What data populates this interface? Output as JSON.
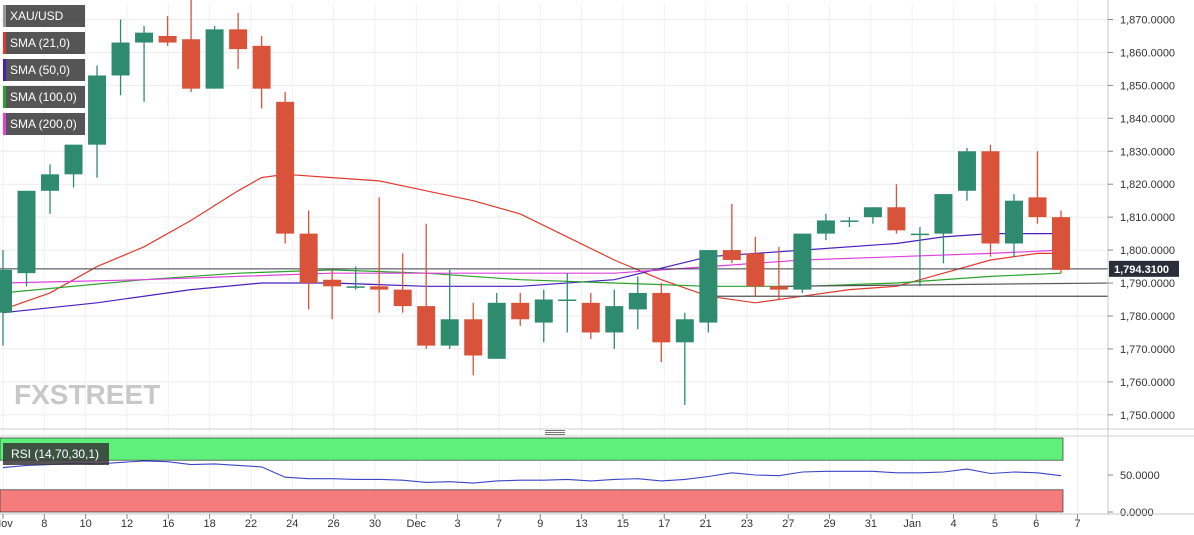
{
  "legend": {
    "symbol": "XAU/USD",
    "items": [
      {
        "label": "SMA (21,0)",
        "color": "#e03a2f"
      },
      {
        "label": "SMA (50,0)",
        "color": "#4b1fbf"
      },
      {
        "label": "SMA (100,0)",
        "color": "#2aa32a"
      },
      {
        "label": "SMA (200,0)",
        "color": "#e040e0"
      }
    ]
  },
  "rsi": {
    "label": "RSI (14,70,30,1)",
    "color": "#3a47c8"
  },
  "watermark": "FXSTREET",
  "colors": {
    "up": "#2e8b6e",
    "down": "#d8533a",
    "overbought_band": "#5ef07a",
    "oversold_band": "#f47c7c"
  },
  "chart_data": [
    {
      "type": "candlestick",
      "symbol": "XAU/USD",
      "ylim": [
        1746,
        1875
      ],
      "y_ticks": [
        "1,870.0000",
        "1,860.0000",
        "1,850.0000",
        "1,840.0000",
        "1,830.0000",
        "1,820.0000",
        "1,810.0000",
        "1,800.0000",
        "1,790.0000",
        "1,780.0000",
        "1,770.0000",
        "1,760.0000",
        "1,750.0000"
      ],
      "x_tick_labels": [
        "Nov",
        "8",
        "10",
        "12",
        "16",
        "18",
        "22",
        "24",
        "26",
        "30",
        "Dec",
        "3",
        "7",
        "9",
        "13",
        "15",
        "17",
        "21",
        "23",
        "27",
        "29",
        "31",
        "Jan",
        "4",
        "5",
        "6",
        "7"
      ],
      "last_price_label": "1,794.3100",
      "candles": [
        {
          "o": 1781,
          "h": 1800,
          "l": 1771,
          "c": 1794
        },
        {
          "o": 1793,
          "h": 1818,
          "l": 1789,
          "c": 1818
        },
        {
          "o": 1818,
          "h": 1826,
          "l": 1811,
          "c": 1823
        },
        {
          "o": 1823,
          "h": 1832,
          "l": 1819,
          "c": 1832
        },
        {
          "o": 1832,
          "h": 1856,
          "l": 1822,
          "c": 1853
        },
        {
          "o": 1853,
          "h": 1870,
          "l": 1847,
          "c": 1863
        },
        {
          "o": 1863,
          "h": 1868,
          "l": 1845,
          "c": 1866
        },
        {
          "o": 1865,
          "h": 1871,
          "l": 1862,
          "c": 1863
        },
        {
          "o": 1864,
          "h": 1877,
          "l": 1848,
          "c": 1849
        },
        {
          "o": 1849,
          "h": 1868,
          "l": 1849,
          "c": 1867
        },
        {
          "o": 1867,
          "h": 1872,
          "l": 1855,
          "c": 1861
        },
        {
          "o": 1862,
          "h": 1865,
          "l": 1843,
          "c": 1849
        },
        {
          "o": 1845,
          "h": 1848,
          "l": 1802,
          "c": 1805
        },
        {
          "o": 1805,
          "h": 1812,
          "l": 1782,
          "c": 1790
        },
        {
          "o": 1791,
          "h": 1794,
          "l": 1779,
          "c": 1789
        },
        {
          "o": 1789,
          "h": 1795,
          "l": 1788,
          "c": 1789
        },
        {
          "o": 1789,
          "h": 1816,
          "l": 1781,
          "c": 1788
        },
        {
          "o": 1788,
          "h": 1799,
          "l": 1781,
          "c": 1783
        },
        {
          "o": 1783,
          "h": 1808,
          "l": 1770,
          "c": 1771
        },
        {
          "o": 1771,
          "h": 1794,
          "l": 1770,
          "c": 1779
        },
        {
          "o": 1779,
          "h": 1784,
          "l": 1762,
          "c": 1768
        },
        {
          "o": 1767,
          "h": 1787,
          "l": 1767,
          "c": 1784
        },
        {
          "o": 1784,
          "h": 1787,
          "l": 1777,
          "c": 1779
        },
        {
          "o": 1778,
          "h": 1788,
          "l": 1772,
          "c": 1785
        },
        {
          "o": 1785,
          "h": 1793,
          "l": 1775,
          "c": 1785
        },
        {
          "o": 1784,
          "h": 1787,
          "l": 1773,
          "c": 1775
        },
        {
          "o": 1775,
          "h": 1788,
          "l": 1770,
          "c": 1783
        },
        {
          "o": 1782,
          "h": 1792,
          "l": 1776,
          "c": 1787
        },
        {
          "o": 1787,
          "h": 1790,
          "l": 1766,
          "c": 1772
        },
        {
          "o": 1772,
          "h": 1781,
          "l": 1753,
          "c": 1779
        },
        {
          "o": 1778,
          "h": 1800,
          "l": 1775,
          "c": 1800
        },
        {
          "o": 1800,
          "h": 1814,
          "l": 1796,
          "c": 1797
        },
        {
          "o": 1799,
          "h": 1804,
          "l": 1786,
          "c": 1789
        },
        {
          "o": 1789,
          "h": 1801,
          "l": 1785,
          "c": 1788
        },
        {
          "o": 1788,
          "h": 1805,
          "l": 1787,
          "c": 1805
        },
        {
          "o": 1805,
          "h": 1811,
          "l": 1803,
          "c": 1809
        },
        {
          "o": 1809,
          "h": 1810,
          "l": 1807,
          "c": 1809
        },
        {
          "o": 1810,
          "h": 1813,
          "l": 1808,
          "c": 1813
        },
        {
          "o": 1813,
          "h": 1820,
          "l": 1805,
          "c": 1806
        },
        {
          "o": 1805,
          "h": 1807,
          "l": 1789,
          "c": 1805
        },
        {
          "o": 1805,
          "h": 1817,
          "l": 1796,
          "c": 1817
        },
        {
          "o": 1818,
          "h": 1831,
          "l": 1815,
          "c": 1830
        },
        {
          "o": 1830,
          "h": 1832,
          "l": 1798,
          "c": 1802
        },
        {
          "o": 1802,
          "h": 1817,
          "l": 1798,
          "c": 1815
        },
        {
          "o": 1816,
          "h": 1830,
          "l": 1808,
          "c": 1810
        },
        {
          "o": 1810,
          "h": 1812,
          "l": 1793,
          "c": 1794
        }
      ],
      "series": [
        {
          "name": "SMA (21,0)",
          "color": "#e03a2f",
          "points": [
            [
              0,
              1782
            ],
            [
              2,
              1787
            ],
            [
              4,
              1795
            ],
            [
              6,
              1801
            ],
            [
              8,
              1809
            ],
            [
              10,
              1818
            ],
            [
              11,
              1822
            ],
            [
              12,
              1823
            ],
            [
              14,
              1822
            ],
            [
              16,
              1821
            ],
            [
              18,
              1818
            ],
            [
              20,
              1815
            ],
            [
              22,
              1811
            ],
            [
              24,
              1804
            ],
            [
              26,
              1797
            ],
            [
              28,
              1791
            ],
            [
              30,
              1786
            ],
            [
              32,
              1784
            ],
            [
              34,
              1786
            ],
            [
              36,
              1788
            ],
            [
              38,
              1789
            ],
            [
              40,
              1793
            ],
            [
              42,
              1797
            ],
            [
              44,
              1799
            ],
            [
              45,
              1799
            ]
          ]
        },
        {
          "name": "SMA (50,0)",
          "color": "#4b1fbf",
          "points": [
            [
              0,
              1781
            ],
            [
              4,
              1784
            ],
            [
              8,
              1788
            ],
            [
              11,
              1790
            ],
            [
              14,
              1790
            ],
            [
              18,
              1789
            ],
            [
              22,
              1789
            ],
            [
              26,
              1791
            ],
            [
              30,
              1798
            ],
            [
              34,
              1800
            ],
            [
              38,
              1802
            ],
            [
              40,
              1804
            ],
            [
              42,
              1805
            ],
            [
              45,
              1805
            ]
          ]
        },
        {
          "name": "SMA (100,0)",
          "color": "#2aa32a",
          "points": [
            [
              0,
              1787
            ],
            [
              6,
              1791
            ],
            [
              10,
              1793
            ],
            [
              14,
              1794
            ],
            [
              18,
              1793
            ],
            [
              22,
              1791
            ],
            [
              26,
              1790
            ],
            [
              30,
              1789
            ],
            [
              34,
              1789
            ],
            [
              38,
              1790
            ],
            [
              42,
              1792
            ],
            [
              45,
              1793
            ]
          ]
        },
        {
          "name": "SMA (200,0)",
          "color": "#e040e0",
          "points": [
            [
              0,
              1790
            ],
            [
              6,
              1791
            ],
            [
              10,
              1792
            ],
            [
              14,
              1793
            ],
            [
              18,
              1793
            ],
            [
              22,
              1793
            ],
            [
              26,
              1793
            ],
            [
              30,
              1795
            ],
            [
              34,
              1797
            ],
            [
              38,
              1798
            ],
            [
              42,
              1799
            ],
            [
              45,
              1800
            ]
          ]
        }
      ],
      "reference_lines": [
        {
          "y": 1794.31
        },
        {
          "x1": 30.2,
          "y1": 1786.0,
          "x2": 45.5,
          "y2": 1786.0
        },
        {
          "x1": 33.0,
          "y1": 1789.0,
          "x2": 45.5,
          "y2": 1790.0
        }
      ]
    },
    {
      "type": "line",
      "name": "RSI (14,70,30,1)",
      "ylim": [
        0,
        100
      ],
      "y_ticks": [
        "50.0000",
        "0.0000"
      ],
      "bands": [
        {
          "from": 70,
          "to": 100,
          "color": "#5ef07a"
        },
        {
          "from": 0,
          "to": 30,
          "color": "#f47c7c"
        }
      ],
      "values": [
        60,
        63,
        64,
        66,
        65,
        67,
        69,
        68,
        64,
        65,
        63,
        61,
        47,
        45,
        45,
        44,
        44,
        43,
        40,
        41,
        39,
        42,
        43,
        43,
        44,
        42,
        44,
        45,
        42,
        44,
        48,
        53,
        50,
        49,
        54,
        55,
        55,
        55,
        53,
        53,
        54,
        58,
        52,
        54,
        53,
        49
      ]
    }
  ]
}
